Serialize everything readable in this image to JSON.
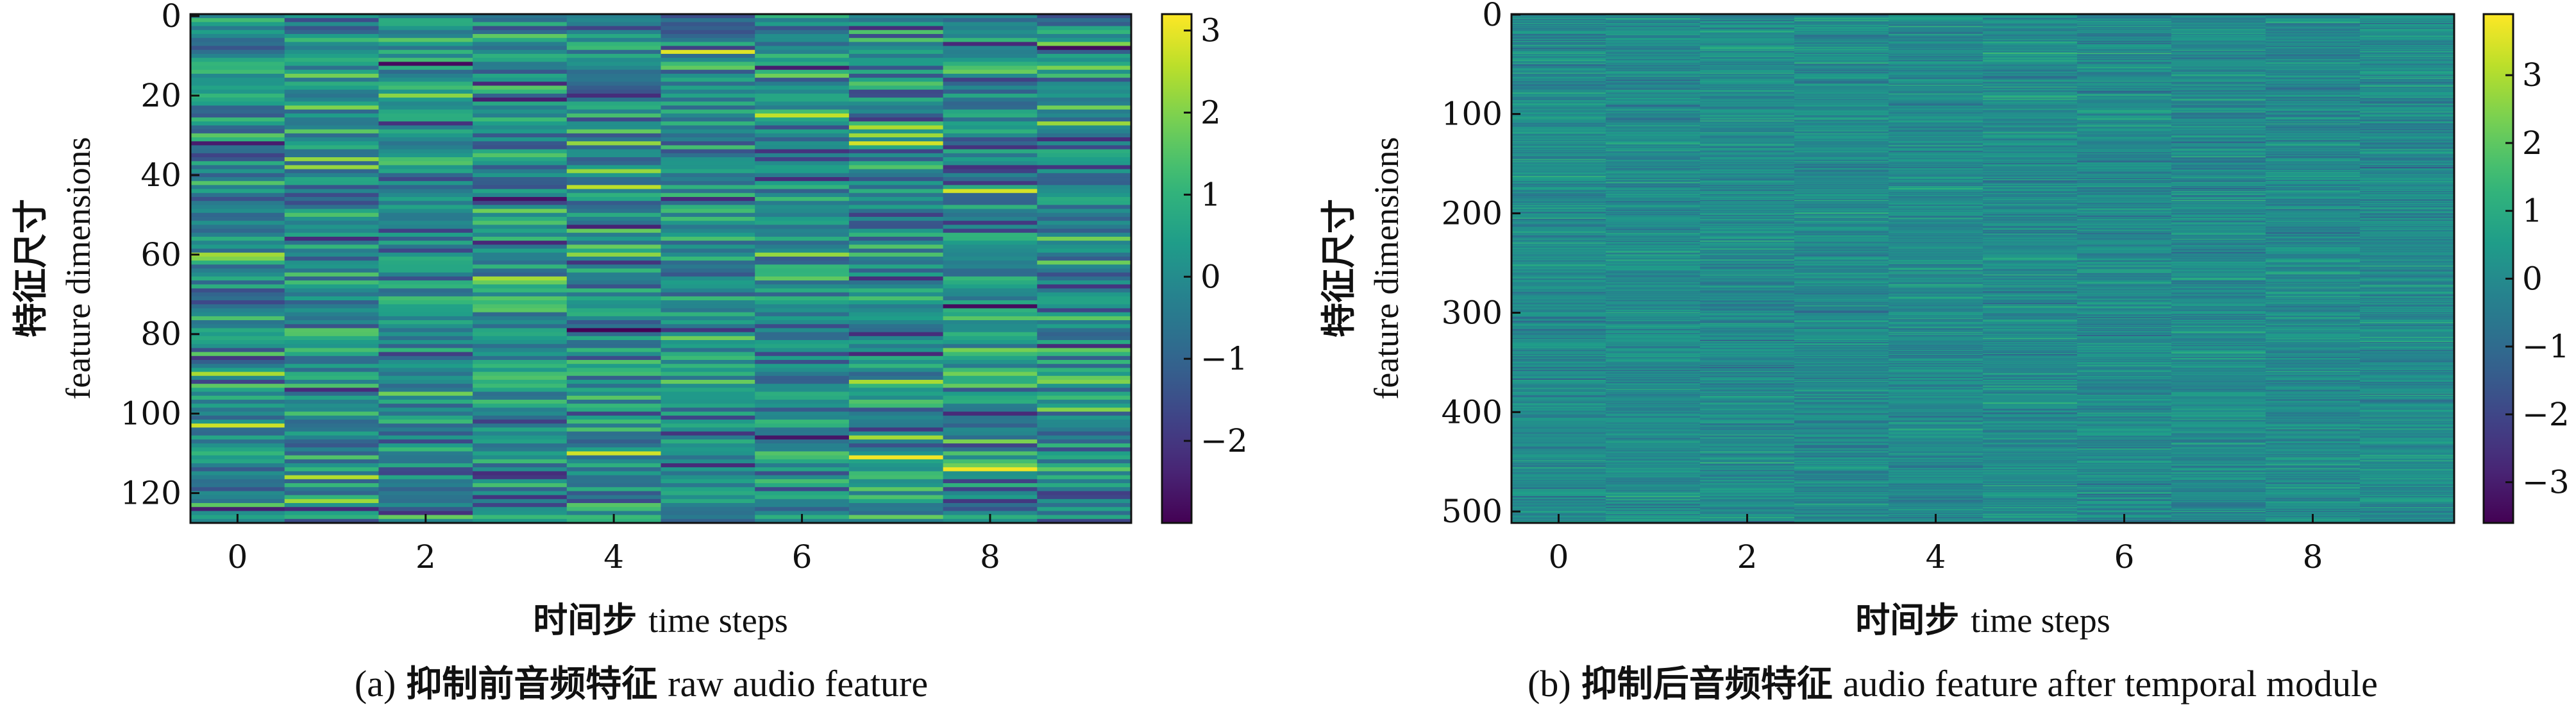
{
  "chart_data": [
    {
      "type": "heatmap",
      "subplot_label": "(a)",
      "caption_cn": "抑制前音频特征",
      "caption_en": "raw audio feature",
      "xlabel_cn": "时间步",
      "xlabel_en": "time steps",
      "ylabel_cn": "特征尺寸",
      "ylabel_en": "feature dimensions",
      "n_time_steps": 10,
      "n_feature_dims": 128,
      "xlim": [
        -0.5,
        9.5
      ],
      "ylim": [
        127.5,
        -0.5
      ],
      "x_ticks": [
        0,
        2,
        4,
        6,
        8
      ],
      "y_ticks": [
        0,
        20,
        40,
        60,
        80,
        100,
        120
      ],
      "colorbar_ticks": [
        3,
        2,
        1,
        0,
        -1,
        -2
      ],
      "colorbar_range": [
        -3,
        3.2
      ],
      "colormap": "viridis",
      "value_std": 1.0,
      "seed": 11
    },
    {
      "type": "heatmap",
      "subplot_label": "(b)",
      "caption_cn": "抑制后音频特征",
      "caption_en": "audio feature after temporal module",
      "xlabel_cn": "时间步",
      "xlabel_en": "time steps",
      "ylabel_cn": "特征尺寸",
      "ylabel_en": "feature dimensions",
      "n_time_steps": 10,
      "n_feature_dims": 512,
      "xlim": [
        -0.5,
        9.5
      ],
      "ylim": [
        511.5,
        -0.5
      ],
      "x_ticks": [
        0,
        2,
        4,
        6,
        8
      ],
      "y_ticks": [
        0,
        100,
        200,
        300,
        400,
        500
      ],
      "colorbar_ticks": [
        3,
        2,
        1,
        0,
        -1,
        -2,
        -3
      ],
      "colorbar_range": [
        -3.6,
        3.9
      ],
      "colormap": "viridis",
      "value_std": 0.45,
      "seed": 23
    }
  ]
}
